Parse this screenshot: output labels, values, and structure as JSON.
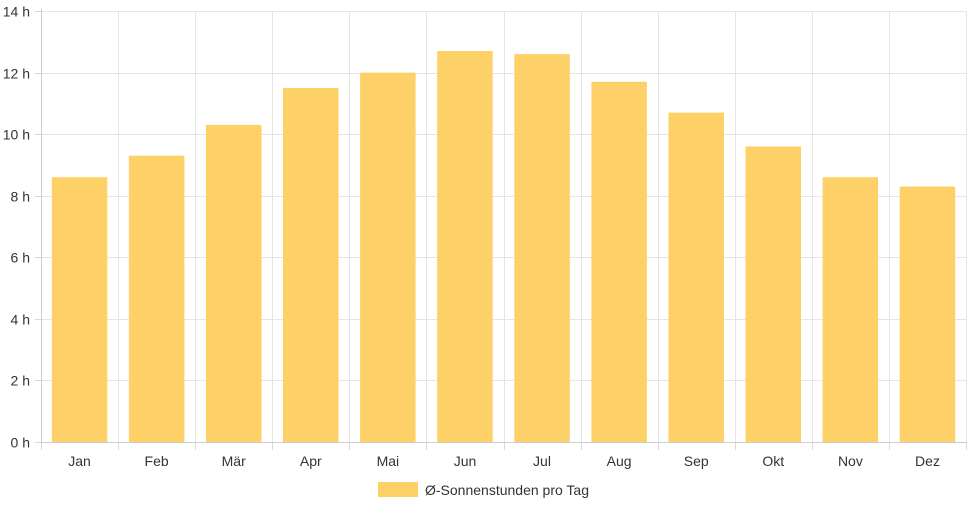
{
  "chart_data": {
    "type": "bar",
    "categories": [
      "Jan",
      "Feb",
      "Mär",
      "Apr",
      "Mai",
      "Jun",
      "Jul",
      "Aug",
      "Sep",
      "Okt",
      "Nov",
      "Dez"
    ],
    "series": [
      {
        "name": "Ø-Sonnenstunden pro Tag",
        "values": [
          8.6,
          9.3,
          10.3,
          11.5,
          12.0,
          12.7,
          12.6,
          11.7,
          10.7,
          9.6,
          8.6,
          8.3
        ],
        "color": "#fdd167"
      }
    ],
    "title": "",
    "xlabel": "",
    "ylabel": "",
    "ylim": [
      0,
      14
    ],
    "yticks": [
      0,
      2,
      4,
      6,
      8,
      10,
      12,
      14
    ],
    "y_tick_suffix": " h",
    "grid": true,
    "legend_position": "bottom"
  },
  "legend": {
    "label": "Ø-Sonnenstunden pro Tag",
    "color": "#fdd167"
  }
}
